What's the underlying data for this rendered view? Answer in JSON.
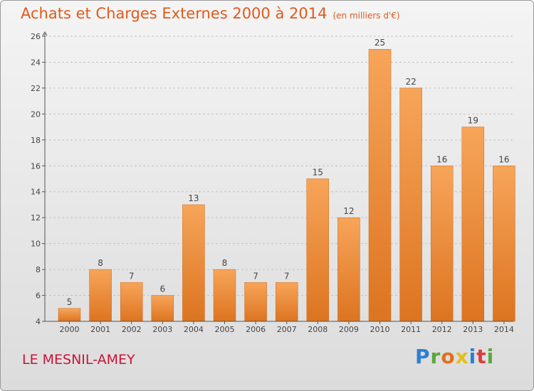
{
  "title": "Achats et Charges Externes 2000 à 2014",
  "unit": "(en milliers d'€)",
  "commune": "LE MESNIL-AMEY",
  "logo": {
    "text": "Proxiti",
    "letter_colors": [
      "#2a7fd4",
      "#5aa83c",
      "#e0701c",
      "#e0c01c",
      "#2a7fd4",
      "#e03c3c",
      "#5aa83c"
    ]
  },
  "colors": {
    "title": "#e05a1c",
    "commune": "#c8143c",
    "bar_light": "#f7a55a",
    "bar_dark": "#e07d28"
  },
  "chart_data": {
    "type": "bar",
    "categories": [
      "2000",
      "2001",
      "2002",
      "2003",
      "2004",
      "2005",
      "2006",
      "2007",
      "2008",
      "2009",
      "2010",
      "2011",
      "2012",
      "2013",
      "2014"
    ],
    "values": [
      5,
      8,
      7,
      6,
      13,
      8,
      7,
      7,
      15,
      12,
      25,
      22,
      16,
      19,
      16
    ],
    "ylim": [
      4,
      26
    ],
    "yticks": [
      4,
      6,
      8,
      10,
      12,
      14,
      16,
      18,
      20,
      22,
      24,
      26
    ],
    "grid": true,
    "data_labels": true
  }
}
